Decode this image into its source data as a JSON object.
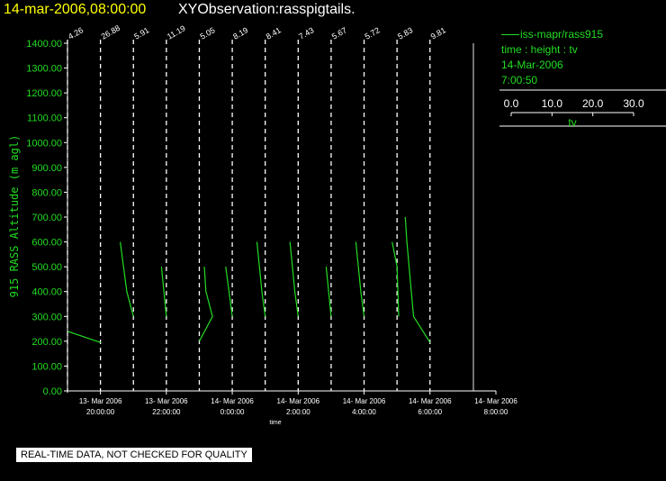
{
  "header": {
    "datetime": "14-mar-2006,08:00:00",
    "observation": "XYObservation:rasspigtails."
  },
  "legend": {
    "series_label": "iss-mapr/rass915",
    "fields": "time : height : tv",
    "date": "14-Mar-2006",
    "time": "7:00:50",
    "scale_ticks": [
      "0.0",
      "10.0",
      "20.0",
      "30.0"
    ],
    "scale_label": "tv"
  },
  "footer": {
    "quality_note": "REAL-TIME DATA, NOT CHECKED FOR QUALITY"
  },
  "colors": {
    "background": "#000000",
    "series": "#22dd22",
    "axis": "#ffffff",
    "title_date": "#ffff00",
    "title_name": "#ffffff"
  },
  "chart_data": {
    "type": "line",
    "ylabel": "915 RASS Altitude (m agl)",
    "xlabel": "time",
    "ylim": [
      0,
      1400
    ],
    "y_ticks": [
      "0.00",
      "100.00",
      "200.00",
      "300.00",
      "400.00",
      "500.00",
      "600.00",
      "700.00",
      "800.00",
      "900.00",
      "1000.00",
      "1100.00",
      "1200.00",
      "1300.00",
      "1400.00"
    ],
    "xlim": [
      "13-Mar-2006 19:00:00",
      "14-Mar-2006 08:00:00"
    ],
    "x_ticks": [
      {
        "date": "13- Mar 2006",
        "time": "20:00:00",
        "at": "13-Mar-2006 20:00:00"
      },
      {
        "date": "13- Mar 2006",
        "time": "22:00:00",
        "at": "13-Mar-2006 22:00:00"
      },
      {
        "date": "14- Mar 2006",
        "time": "0:00:00",
        "at": "14-Mar-2006 00:00:00"
      },
      {
        "date": "14- Mar 2006",
        "time": "2:00:00",
        "at": "14-Mar-2006 02:00:00"
      },
      {
        "date": "14- Mar 2006",
        "time": "4:00:00",
        "at": "14-Mar-2006 04:00:00"
      },
      {
        "date": "14- Mar 2006",
        "time": "6:00:00",
        "at": "14-Mar-2006 06:00:00"
      },
      {
        "date": "14- Mar 2006",
        "time": "8:00:00",
        "at": "14-Mar-2006 08:00:00"
      }
    ],
    "profiles": [
      {
        "time": "13-Mar-2006 19:00:00",
        "label": "4.26",
        "points": [
          [
            0,
            240
          ],
          [
            1,
            195
          ]
        ]
      },
      {
        "time": "13-Mar-2006 20:00:00",
        "label": "26.88",
        "points": []
      },
      {
        "time": "13-Mar-2006 21:00:00",
        "label": "5.91",
        "points": [
          [
            -0.4,
            600
          ],
          [
            -0.2,
            400
          ],
          [
            0,
            300
          ]
        ]
      },
      {
        "time": "13-Mar-2006 22:00:00",
        "label": "11.19",
        "points": [
          [
            -0.15,
            500
          ],
          [
            0,
            300
          ]
        ]
      },
      {
        "time": "13-Mar-2006 23:00:00",
        "label": "5.05",
        "points": [
          [
            0,
            200
          ],
          [
            0.4,
            300
          ],
          [
            0.2,
            400
          ],
          [
            0.15,
            500
          ]
        ]
      },
      {
        "time": "14-Mar-2006 00:00:00",
        "label": "8.19",
        "points": [
          [
            -0.2,
            500
          ],
          [
            0,
            300
          ]
        ]
      },
      {
        "time": "14-Mar-2006 01:00:00",
        "label": "8.41",
        "points": [
          [
            -0.25,
            600
          ],
          [
            -0.1,
            400
          ],
          [
            0,
            300
          ]
        ]
      },
      {
        "time": "14-Mar-2006 02:00:00",
        "label": "7.43",
        "points": [
          [
            -0.25,
            600
          ],
          [
            -0.1,
            400
          ],
          [
            0,
            300
          ]
        ]
      },
      {
        "time": "14-Mar-2006 03:00:00",
        "label": "5.67",
        "points": [
          [
            -0.15,
            500
          ],
          [
            0,
            300
          ]
        ]
      },
      {
        "time": "14-Mar-2006 04:00:00",
        "label": "5.72",
        "points": [
          [
            -0.25,
            600
          ],
          [
            -0.1,
            400
          ],
          [
            0,
            300
          ]
        ]
      },
      {
        "time": "14-Mar-2006 05:00:00",
        "label": "5.83",
        "points": [
          [
            -0.15,
            600
          ],
          [
            0,
            500
          ],
          [
            0.05,
            300
          ]
        ]
      },
      {
        "time": "14-Mar-2006 06:00:00",
        "label": "9.81",
        "points": [
          [
            -0.75,
            700
          ],
          [
            -0.7,
            600
          ],
          [
            -0.5,
            300
          ],
          [
            0,
            195
          ]
        ]
      }
    ]
  }
}
